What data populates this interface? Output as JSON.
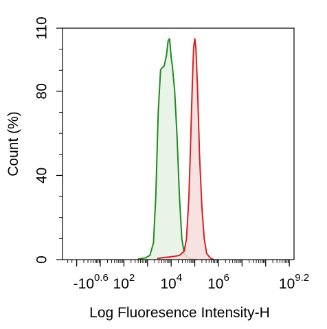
{
  "chart_data": {
    "type": "area",
    "xlabel": "Log Fluoresence Intensity-H",
    "ylabel": "Count  (%)",
    "xscale": "log",
    "xlim_exp": [
      -0.6,
      9.2
    ],
    "ylim": [
      0,
      110
    ],
    "y_ticks": [
      {
        "value": 0,
        "label": "0"
      },
      {
        "value": 40,
        "label": "40"
      },
      {
        "value": 80,
        "label": "80"
      },
      {
        "value": 110,
        "label": "110"
      }
    ],
    "x_ticks": [
      {
        "exp": 0.6,
        "base": "-10",
        "sup": "0.6"
      },
      {
        "exp": 2,
        "base": "10",
        "sup": "2"
      },
      {
        "exp": 4,
        "base": "10",
        "sup": "4"
      },
      {
        "exp": 6,
        "base": "10",
        "sup": "6"
      },
      {
        "exp": 9.2,
        "base": "10",
        "sup": "9.2"
      }
    ],
    "series": [
      {
        "color": "#1e8a1e",
        "fill": "#e6f1e4",
        "points": [
          [
            2.6,
            0.3
          ],
          [
            2.9,
            0.8
          ],
          [
            3.1,
            2
          ],
          [
            3.25,
            8
          ],
          [
            3.35,
            30
          ],
          [
            3.45,
            70
          ],
          [
            3.55,
            90
          ],
          [
            3.6,
            91
          ],
          [
            3.7,
            92
          ],
          [
            3.8,
            97
          ],
          [
            3.87,
            104
          ],
          [
            3.93,
            105
          ],
          [
            3.97,
            100
          ],
          [
            4.0,
            96
          ],
          [
            4.05,
            92
          ],
          [
            4.15,
            80
          ],
          [
            4.25,
            58
          ],
          [
            4.35,
            30
          ],
          [
            4.45,
            10
          ],
          [
            4.55,
            3
          ],
          [
            4.7,
            1
          ],
          [
            4.9,
            0.3
          ],
          [
            5.1,
            0
          ]
        ]
      },
      {
        "color": "#d22222",
        "fill": "#f7dcdc",
        "points": [
          [
            3.4,
            0.5
          ],
          [
            3.7,
            1
          ],
          [
            3.9,
            1.2
          ],
          [
            4.1,
            1.5
          ],
          [
            4.35,
            2
          ],
          [
            4.55,
            4
          ],
          [
            4.65,
            10
          ],
          [
            4.75,
            30
          ],
          [
            4.82,
            55
          ],
          [
            4.9,
            85
          ],
          [
            4.95,
            101
          ],
          [
            5.0,
            105
          ],
          [
            5.05,
            100
          ],
          [
            5.12,
            80
          ],
          [
            5.2,
            50
          ],
          [
            5.3,
            25
          ],
          [
            5.4,
            10
          ],
          [
            5.5,
            3
          ],
          [
            5.65,
            0.8
          ],
          [
            5.8,
            0
          ]
        ]
      }
    ]
  }
}
